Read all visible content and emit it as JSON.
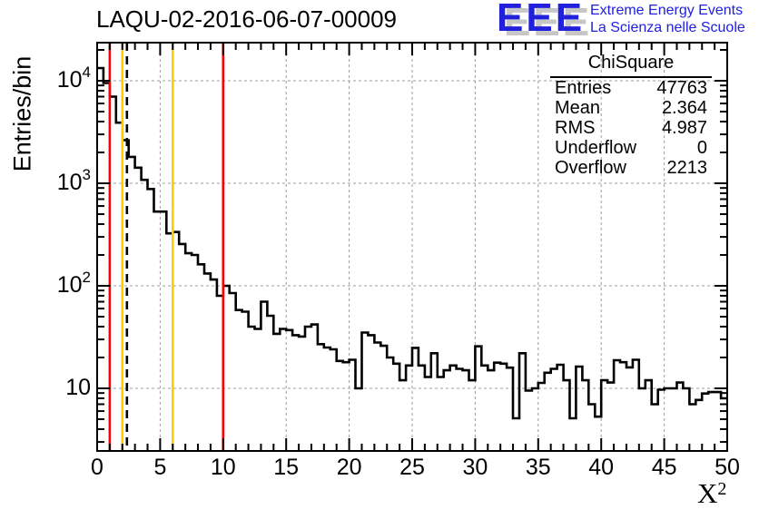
{
  "title": "LAQU-02-2016-06-07-00009",
  "logo": {
    "letters": "EEE",
    "line1": "Extreme Energy Events",
    "line2": "La Scienza nelle Scuole",
    "blue": "#2020dd",
    "shadow_gray": "#c6c6c6"
  },
  "stats": {
    "header": "ChiSquare",
    "rows": [
      {
        "label": "Entries",
        "value": "47763"
      },
      {
        "label": "Mean",
        "value": "2.364"
      },
      {
        "label": "RMS",
        "value": "4.987"
      },
      {
        "label": "Underflow",
        "value": "0"
      },
      {
        "label": "Overflow",
        "value": "2213"
      }
    ]
  },
  "axis_titles": {
    "y": "Entries/bin",
    "x_base": "X",
    "x_sup": "2"
  },
  "chart_data": {
    "type": "bar",
    "title": "LAQU-02-2016-06-07-00009",
    "xlabel": "X^2",
    "ylabel": "Entries/bin",
    "xlim": [
      0,
      50
    ],
    "ylog": true,
    "ylim": [
      2.45,
      23600
    ],
    "grid": true,
    "bin_start": 0,
    "bin_width": 0.5,
    "counts": [
      13300,
      9500,
      7000,
      3900,
      2630,
      1810,
      1420,
      1080,
      880,
      530,
      530,
      325,
      335,
      256,
      208,
      200,
      162,
      132,
      115,
      80,
      100,
      85,
      58,
      56,
      40,
      38,
      70,
      51,
      34,
      38,
      37,
      33,
      32,
      40,
      42,
      27,
      25,
      24,
      18.5,
      18,
      19,
      10,
      35,
      33,
      28,
      26,
      20,
      17.4,
      12,
      16.7,
      24.8,
      16.7,
      12.9,
      22,
      12.9,
      15,
      16.7,
      15.5,
      15,
      12,
      25.7,
      16.7,
      15,
      17.8,
      17.4,
      15.9,
      5.1,
      22,
      9.5,
      10,
      11.3,
      14.2,
      15.5,
      17,
      12,
      5.1,
      16.3,
      12,
      7,
      5.3,
      12,
      11.4,
      18.8,
      18,
      16,
      19,
      10,
      12,
      7,
      9.7,
      10,
      10,
      11.4,
      10,
      7,
      7.7,
      8.9,
      9.2,
      9.2,
      8
    ],
    "x_major_ticks": [
      0,
      5,
      10,
      15,
      20,
      25,
      30,
      35,
      40,
      45,
      50
    ],
    "x_tick_labels": [
      "0",
      "5",
      "10",
      "15",
      "20",
      "25",
      "30",
      "35",
      "40",
      "45",
      "50"
    ],
    "x_minor_step": 1,
    "y_tick_labels": [
      {
        "base": "10",
        "sup": "4",
        "value": 10000
      },
      {
        "base": "10",
        "sup": "3",
        "value": 1000
      },
      {
        "base": "10",
        "sup": "2",
        "value": 100
      },
      {
        "base": "10",
        "sup": "",
        "value": 10
      }
    ],
    "marker_lines": [
      {
        "x": 1,
        "color": "#ff0000",
        "style": "solid",
        "name": "red-cut-line-1"
      },
      {
        "x": 2,
        "color": "#ffcc00",
        "style": "solid",
        "name": "yellow-cut-line-2"
      },
      {
        "x": 2.364,
        "color": "#000000",
        "style": "dashed",
        "name": "mean-dashed-line"
      },
      {
        "x": 6,
        "color": "#ffcc00",
        "style": "solid",
        "name": "yellow-cut-line-6"
      },
      {
        "x": 10,
        "color": "#ff0000",
        "style": "solid",
        "name": "red-cut-line-10"
      }
    ],
    "colors": {
      "histogram": "#000000",
      "grid": "#9c9c9c",
      "frame": "#000000"
    }
  }
}
